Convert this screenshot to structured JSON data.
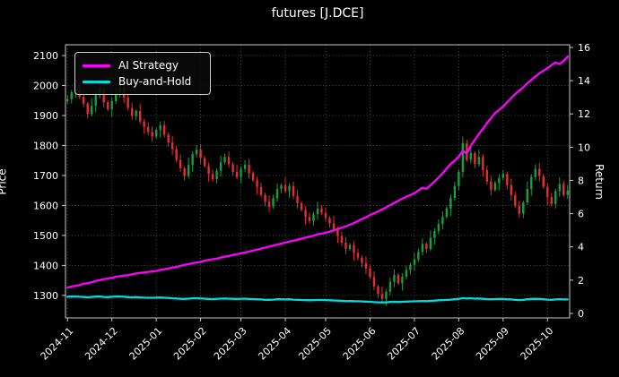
{
  "title": "futures [J.DCE]",
  "colors": {
    "background": "#000000",
    "text": "#ffffff",
    "grid": "#5a5a5a",
    "frame": "#c8c8c8",
    "strategy": "#ff00ff",
    "buyhold": "#00dcdc",
    "up": "#16a03c",
    "down": "#e62e2e"
  },
  "legend": {
    "items": [
      {
        "label": "AI Strategy",
        "color": "strategy"
      },
      {
        "label": "Buy-and-Hold",
        "color": "buyhold"
      }
    ]
  },
  "chart_data": {
    "type": "candlestick+line",
    "title": "futures [J.DCE]",
    "ylabel_left": "Price",
    "ylabel_right": "Return",
    "grid": true,
    "legend_position": "upper left",
    "y_left_ticks": [
      1300,
      1400,
      1500,
      1600,
      1700,
      1800,
      1900,
      2000,
      2100
    ],
    "y_left_range": [
      1225,
      2136
    ],
    "y_right_ticks": [
      0,
      2,
      4,
      6,
      8,
      10,
      12,
      14,
      16
    ],
    "y_right_range": [
      -0.27,
      16.16
    ],
    "x_tick_labels": [
      "2024-11",
      "2024-12",
      "2025-01",
      "2025-02",
      "2025-03",
      "2025-04",
      "2025-05",
      "2025-06",
      "2025-07",
      "2025-08",
      "2025-09",
      "2025-10"
    ],
    "x_tick_indices": [
      0,
      11,
      22,
      33,
      43,
      54,
      64,
      75,
      86,
      97,
      108,
      119
    ],
    "first_open": 1948,
    "wick_pattern": [
      14,
      8,
      22,
      11,
      18,
      6,
      25,
      9,
      15,
      19,
      7,
      12
    ],
    "candles_close": [
      1955,
      1978,
      2000,
      1962,
      1940,
      1905,
      1932,
      1968,
      1990,
      1944,
      1921,
      1948,
      1975,
      1992,
      1960,
      1925,
      1898,
      1915,
      1880,
      1862,
      1845,
      1830,
      1852,
      1868,
      1836,
      1810,
      1788,
      1752,
      1724,
      1698,
      1735,
      1772,
      1786,
      1758,
      1732,
      1705,
      1688,
      1716,
      1744,
      1762,
      1738,
      1712,
      1695,
      1722,
      1736,
      1708,
      1684,
      1662,
      1635,
      1612,
      1596,
      1624,
      1655,
      1668,
      1648,
      1665,
      1632,
      1608,
      1585,
      1562,
      1548,
      1571,
      1590,
      1576,
      1558,
      1540,
      1521,
      1498,
      1476,
      1455,
      1468,
      1442,
      1426,
      1408,
      1390,
      1362,
      1330,
      1305,
      1288,
      1312,
      1345,
      1368,
      1341,
      1362,
      1385,
      1402,
      1420,
      1445,
      1472,
      1455,
      1492,
      1515,
      1538,
      1562,
      1590,
      1625,
      1665,
      1712,
      1808,
      1752,
      1775,
      1738,
      1762,
      1718,
      1680,
      1652,
      1675,
      1692,
      1705,
      1668,
      1635,
      1598,
      1572,
      1610,
      1655,
      1695,
      1722,
      1698,
      1662,
      1628,
      1605,
      1648,
      1672,
      1635,
      1650
    ],
    "series": [
      {
        "name": "AI Strategy",
        "axis": "right",
        "color": "strategy",
        "values": [
          1.55,
          1.62,
          1.66,
          1.7,
          1.78,
          1.82,
          1.88,
          1.95,
          2.0,
          2.06,
          2.1,
          2.15,
          2.2,
          2.24,
          2.28,
          2.3,
          2.36,
          2.4,
          2.44,
          2.46,
          2.5,
          2.52,
          2.56,
          2.62,
          2.66,
          2.7,
          2.76,
          2.8,
          2.86,
          2.92,
          2.96,
          3.02,
          3.06,
          3.1,
          3.16,
          3.22,
          3.26,
          3.3,
          3.36,
          3.42,
          3.46,
          3.52,
          3.56,
          3.62,
          3.66,
          3.72,
          3.78,
          3.84,
          3.9,
          3.96,
          4.02,
          4.08,
          4.14,
          4.2,
          4.26,
          4.32,
          4.38,
          4.44,
          4.5,
          4.56,
          4.62,
          4.68,
          4.76,
          4.8,
          4.86,
          4.92,
          5.0,
          5.08,
          5.16,
          5.24,
          5.34,
          5.44,
          5.56,
          5.68,
          5.78,
          5.92,
          6.02,
          6.14,
          6.26,
          6.38,
          6.52,
          6.64,
          6.78,
          6.9,
          7.02,
          7.12,
          7.24,
          7.4,
          7.56,
          7.5,
          7.72,
          7.94,
          8.18,
          8.44,
          8.72,
          9.0,
          9.2,
          9.44,
          9.78,
          9.62,
          10.1,
          10.45,
          10.8,
          11.1,
          11.45,
          11.75,
          12.05,
          12.25,
          12.45,
          12.7,
          12.95,
          13.2,
          13.4,
          13.6,
          13.85,
          14.05,
          14.25,
          14.45,
          14.6,
          14.75,
          14.95,
          15.1,
          15.0,
          15.2,
          15.45
        ]
      },
      {
        "name": "Buy-and-Hold",
        "axis": "right",
        "color": "buyhold",
        "values": [
          1.0,
          1.01,
          1.02,
          1.0,
          0.99,
          0.97,
          0.99,
          1.01,
          1.02,
          0.99,
          0.98,
          1.0,
          1.01,
          1.02,
          1.0,
          0.98,
          0.97,
          0.98,
          0.96,
          0.95,
          0.94,
          0.94,
          0.95,
          0.96,
          0.94,
          0.93,
          0.91,
          0.9,
          0.88,
          0.87,
          0.89,
          0.91,
          0.91,
          0.9,
          0.89,
          0.87,
          0.86,
          0.88,
          0.89,
          0.9,
          0.89,
          0.88,
          0.87,
          0.88,
          0.89,
          0.87,
          0.86,
          0.85,
          0.84,
          0.82,
          0.82,
          0.83,
          0.85,
          0.85,
          0.84,
          0.85,
          0.83,
          0.82,
          0.81,
          0.8,
          0.79,
          0.8,
          0.81,
          0.81,
          0.8,
          0.79,
          0.78,
          0.77,
          0.76,
          0.74,
          0.75,
          0.74,
          0.73,
          0.72,
          0.71,
          0.7,
          0.68,
          0.67,
          0.66,
          0.67,
          0.69,
          0.7,
          0.69,
          0.7,
          0.71,
          0.72,
          0.73,
          0.74,
          0.75,
          0.74,
          0.76,
          0.77,
          0.79,
          0.8,
          0.81,
          0.83,
          0.85,
          0.88,
          0.92,
          0.9,
          0.91,
          0.89,
          0.9,
          0.88,
          0.86,
          0.85,
          0.86,
          0.87,
          0.87,
          0.85,
          0.84,
          0.82,
          0.8,
          0.82,
          0.85,
          0.87,
          0.88,
          0.87,
          0.85,
          0.83,
          0.82,
          0.84,
          0.86,
          0.84,
          0.84
        ]
      }
    ]
  }
}
